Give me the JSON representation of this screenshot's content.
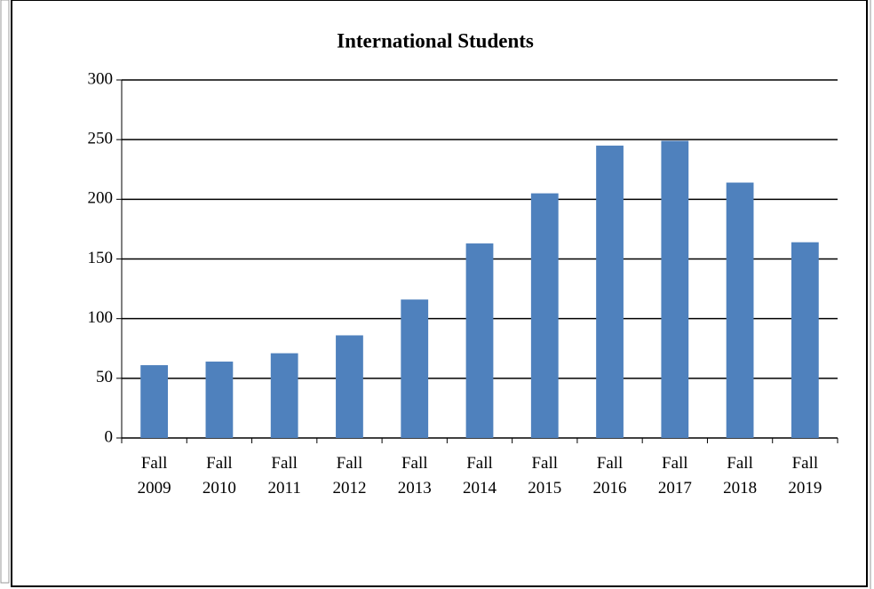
{
  "chart_data": {
    "type": "bar",
    "title": "International Students",
    "categories": [
      "Fall 2009",
      "Fall 2010",
      "Fall 2011",
      "Fall 2012",
      "Fall 2013",
      "Fall 2014",
      "Fall 2015",
      "Fall 2016",
      "Fall 2017",
      "Fall 2018",
      "Fall 2019"
    ],
    "values": [
      61,
      64,
      71,
      86,
      116,
      163,
      205,
      245,
      249,
      214,
      164
    ],
    "color": "#4f81bd",
    "ylim": [
      0,
      300
    ],
    "yticks": [
      0,
      50,
      100,
      150,
      200,
      250,
      300
    ],
    "grid": true
  }
}
